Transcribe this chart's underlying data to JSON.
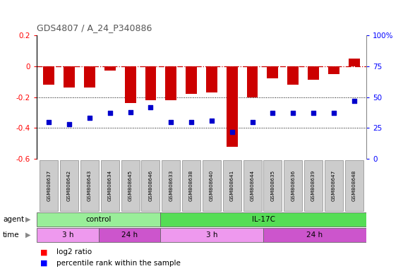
{
  "title": "GDS4807 / A_24_P340886",
  "samples": [
    "GSM808637",
    "GSM808642",
    "GSM808643",
    "GSM808634",
    "GSM808645",
    "GSM808646",
    "GSM808633",
    "GSM808638",
    "GSM808640",
    "GSM808641",
    "GSM808644",
    "GSM808635",
    "GSM808636",
    "GSM808639",
    "GSM808647",
    "GSM808648"
  ],
  "log2_ratio": [
    -0.12,
    -0.14,
    -0.14,
    -0.03,
    -0.24,
    -0.22,
    -0.22,
    -0.18,
    -0.17,
    -0.52,
    -0.2,
    -0.08,
    -0.12,
    -0.09,
    -0.05,
    0.05
  ],
  "percentile": [
    30,
    28,
    33,
    37,
    38,
    42,
    30,
    30,
    31,
    22,
    30,
    37,
    37,
    37,
    37,
    47
  ],
  "bar_color": "#cc0000",
  "square_color": "#0000cc",
  "ref_line_color": "#cc0000",
  "dotted_line_color": "#000000",
  "agent_groups": [
    {
      "label": "control",
      "start": 0,
      "end": 6,
      "color": "#99ee99"
    },
    {
      "label": "IL-17C",
      "start": 6,
      "end": 16,
      "color": "#55dd55"
    }
  ],
  "time_groups": [
    {
      "label": "3 h",
      "start": 0,
      "end": 3,
      "color": "#ee99ee"
    },
    {
      "label": "24 h",
      "start": 3,
      "end": 6,
      "color": "#cc55cc"
    },
    {
      "label": "3 h",
      "start": 6,
      "end": 11,
      "color": "#ee99ee"
    },
    {
      "label": "24 h",
      "start": 11,
      "end": 16,
      "color": "#cc55cc"
    }
  ],
  "ylim_left": [
    -0.6,
    0.2
  ],
  "ylim_right": [
    0,
    100
  ],
  "yticks_left": [
    -0.6,
    -0.4,
    -0.2,
    0.0,
    0.2
  ],
  "yticks_right": [
    0,
    25,
    50,
    75,
    100
  ],
  "hlines": [
    -0.4,
    -0.2
  ],
  "background_color": "#ffffff"
}
